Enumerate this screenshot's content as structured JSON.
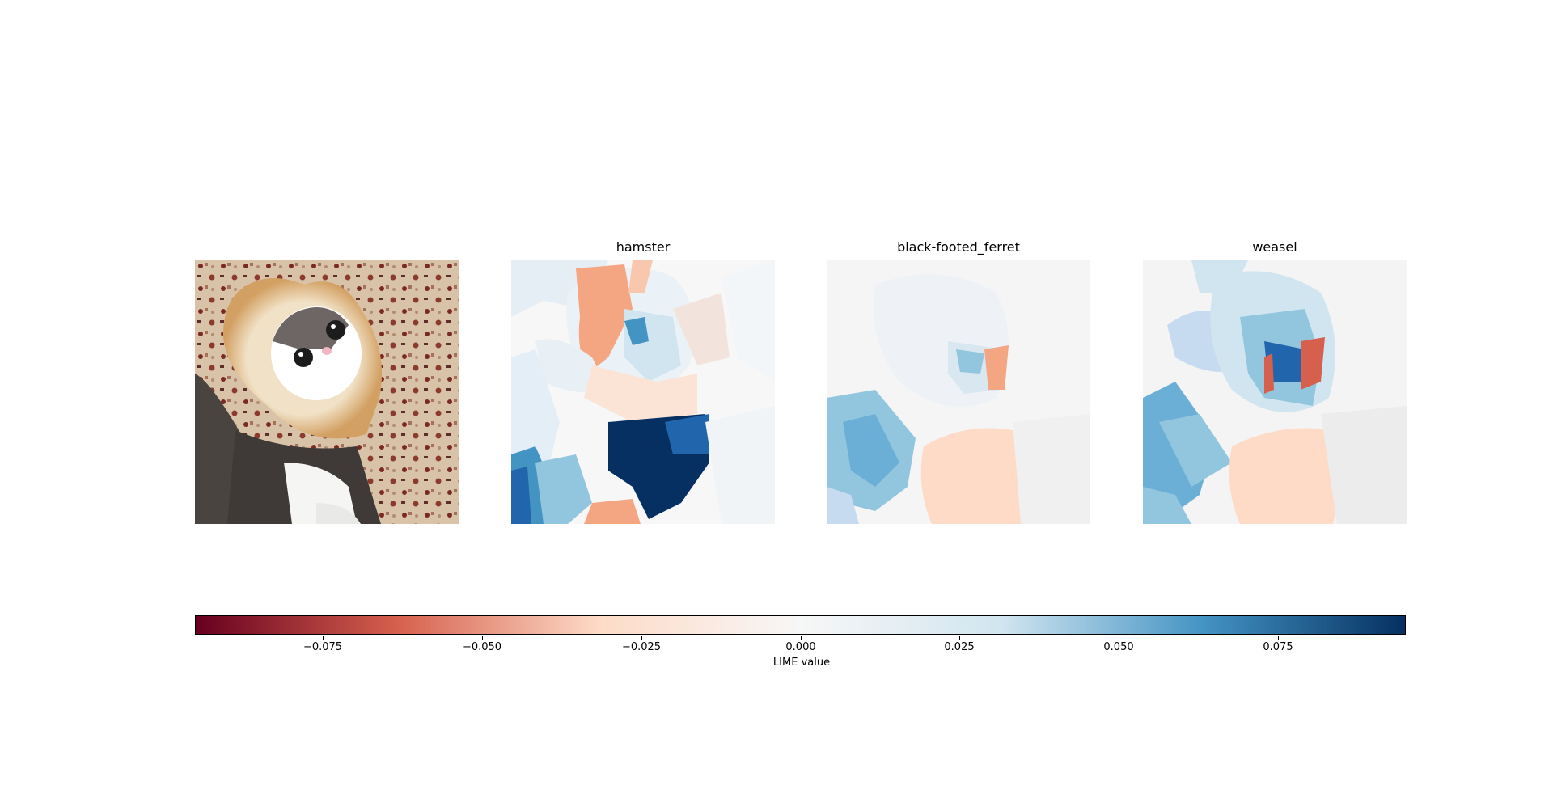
{
  "panels": [
    {
      "title": "",
      "kind": "photo",
      "icons": [
        "kitten-in-bread-photo"
      ]
    },
    {
      "title": "hamster",
      "kind": "lime-map"
    },
    {
      "title": "black-footed_ferret",
      "kind": "lime-map"
    },
    {
      "title": "weasel",
      "kind": "lime-map"
    }
  ],
  "chart_data": {
    "type": "heatmap",
    "panel_titles": [
      "hamster",
      "black-footed_ferret",
      "weasel"
    ],
    "colorbar": {
      "label": "LIME value",
      "colormap": "RdBu",
      "range": [
        -0.095,
        0.095
      ],
      "ticks": [
        -0.075,
        -0.05,
        -0.025,
        0.0,
        0.025,
        0.05,
        0.075
      ],
      "tick_labels": [
        "−0.075",
        "−0.050",
        "−0.025",
        "0.000",
        "0.025",
        "0.050",
        "0.075"
      ]
    },
    "colors": {
      "deep_red": "#67001f",
      "red": "#d6604d",
      "light_red": "#fddbc7",
      "neutral": "#f7f7f7",
      "light_blue": "#d1e5f0",
      "blue": "#4393c3",
      "deep_blue": "#053061"
    }
  }
}
